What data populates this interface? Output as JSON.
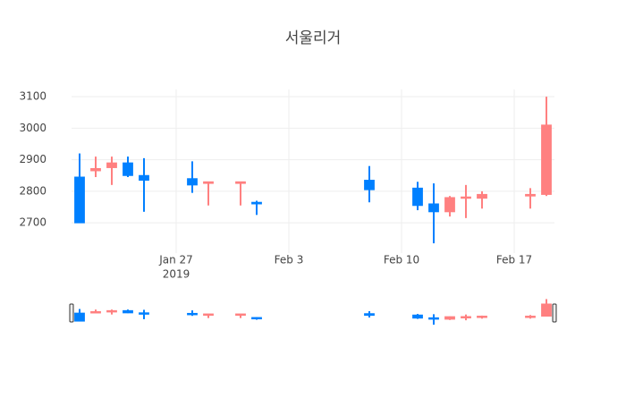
{
  "chart_data": {
    "type": "candlestick",
    "title": "서울리거",
    "x": [
      "2019-01-21",
      "2019-01-22",
      "2019-01-23",
      "2019-01-24",
      "2019-01-25",
      "2019-01-28",
      "2019-01-29",
      "2019-01-31",
      "2019-02-01",
      "2019-02-08",
      "2019-02-11",
      "2019-02-12",
      "2019-02-13",
      "2019-02-14",
      "2019-02-15",
      "2019-02-18",
      "2019-02-19"
    ],
    "open": [
      2845,
      2865,
      2875,
      2890,
      2850,
      2840,
      2825,
      2825,
      2765,
      2835,
      2810,
      2760,
      2735,
      2778,
      2778,
      2785,
      2790
    ],
    "high": [
      2920,
      2910,
      2910,
      2910,
      2905,
      2895,
      2830,
      2830,
      2770,
      2880,
      2830,
      2825,
      2785,
      2820,
      2800,
      2810,
      3100
    ],
    "low": [
      2700,
      2845,
      2820,
      2845,
      2735,
      2795,
      2755,
      2755,
      2725,
      2765,
      2740,
      2635,
      2720,
      2715,
      2745,
      2745,
      2785
    ],
    "close": [
      2700,
      2872,
      2890,
      2850,
      2835,
      2820,
      2830,
      2830,
      2760,
      2805,
      2755,
      2735,
      2780,
      2782,
      2790,
      2790,
      3010
    ],
    "increasing_color": "#ff8080",
    "decreasing_color": "#0080ff",
    "xlim": [
      "2019-01-20T12:00Z",
      "2019-02-19T12:00Z"
    ],
    "xticks": [
      {
        "value": "2019-01-27",
        "label": "Jan 27",
        "sublabel": "2019"
      },
      {
        "value": "2019-02-03",
        "label": "Feb 3"
      },
      {
        "value": "2019-02-10",
        "label": "Feb 10"
      },
      {
        "value": "2019-02-17",
        "label": "Feb 17"
      }
    ],
    "ylim": [
      2604,
      3123
    ],
    "yticks": [
      2700,
      2800,
      2900,
      3000,
      3100
    ],
    "grid": true,
    "rangeslider": true
  }
}
